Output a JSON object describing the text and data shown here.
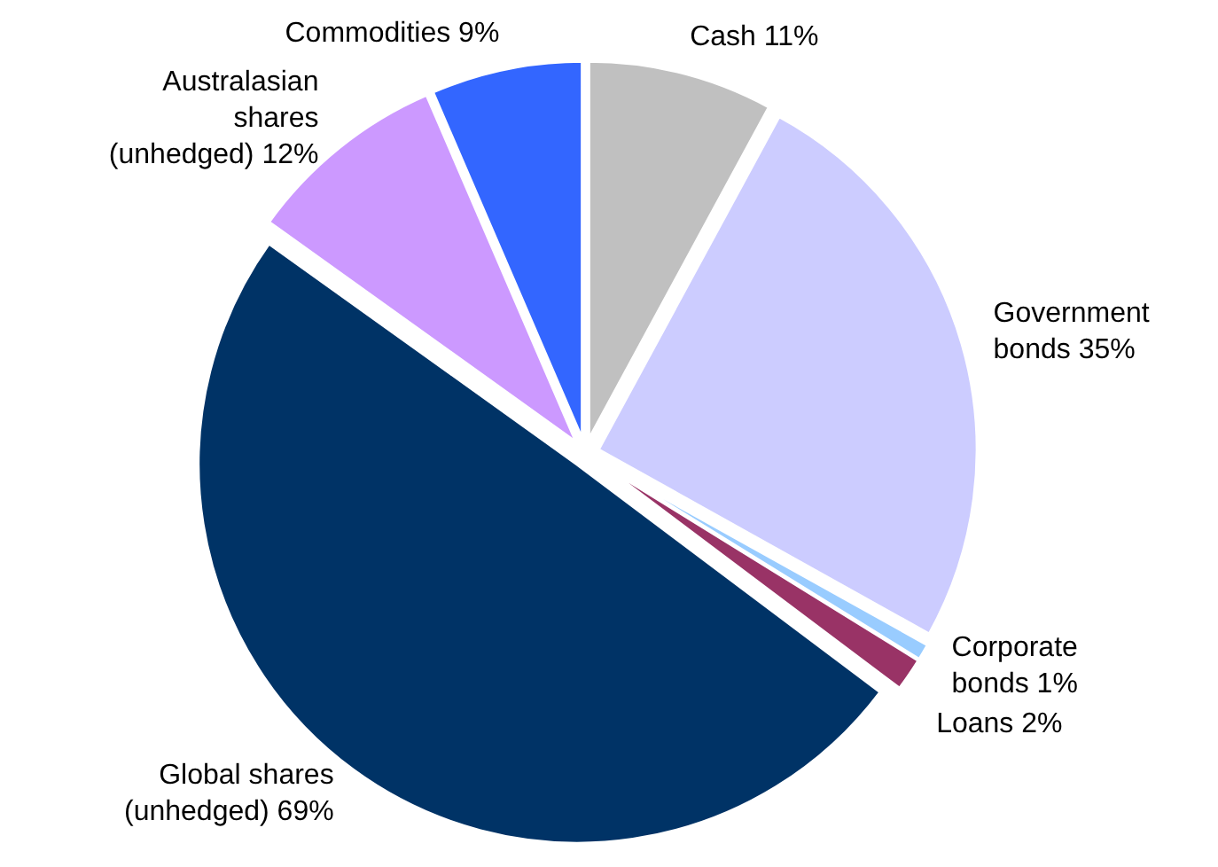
{
  "chart_data": {
    "type": "pie",
    "categories": [
      "Cash",
      "Government\nbonds",
      "Corporate\nbonds",
      "Loans",
      "Global shares\n(unhedged)",
      "Australasian\nshares\n(unhedged)",
      "Commodities"
    ],
    "values": [
      11,
      35,
      1,
      2,
      69,
      12,
      9
    ],
    "value_labels": [
      "11%",
      "35%",
      "1%",
      "2%",
      "69%",
      "12%",
      "9%"
    ],
    "colors": [
      "#c0c0c0",
      "#ccccff",
      "#99ccff",
      "#993366",
      "#003366",
      "#cc99ff",
      "#3366ff"
    ]
  }
}
